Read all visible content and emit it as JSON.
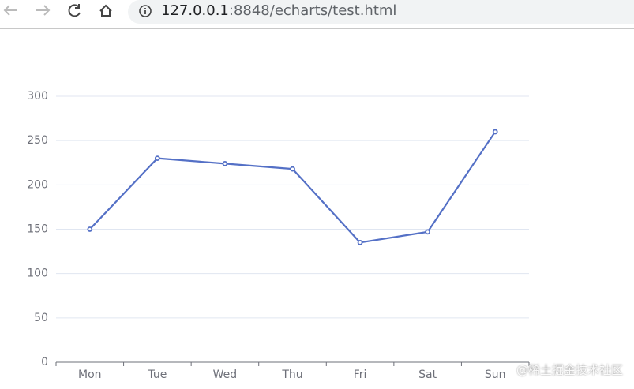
{
  "browser": {
    "url_host": "127.0.0.1",
    "url_path": ":8848/echarts/test.html"
  },
  "watermark": "@稀土掘金技术社区",
  "chart_data": {
    "type": "line",
    "categories": [
      "Mon",
      "Tue",
      "Wed",
      "Thu",
      "Fri",
      "Sat",
      "Sun"
    ],
    "values": [
      150,
      230,
      224,
      218,
      135,
      147,
      260
    ],
    "color": "#5470c6",
    "ylim": [
      0,
      300
    ],
    "yticks": [
      0,
      50,
      100,
      150,
      200,
      250,
      300
    ],
    "grid": true
  }
}
